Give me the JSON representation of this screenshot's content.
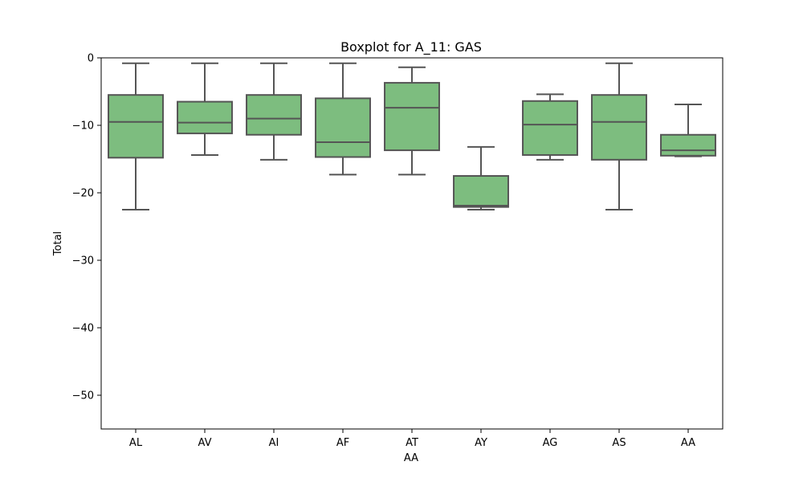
{
  "chart_data": {
    "type": "box",
    "title": "Boxplot for A_11: GAS",
    "xlabel": "AA",
    "ylabel": "Total",
    "ylim": [
      -55,
      0
    ],
    "yticks": [
      0,
      -10,
      -20,
      -30,
      -40,
      -50
    ],
    "ytick_labels": [
      "0",
      "−10",
      "−20",
      "−30",
      "−40",
      "−50"
    ],
    "grid": false,
    "box_color": "#7dbd7f",
    "line_color": "#555555",
    "categories": [
      "AL",
      "AV",
      "AI",
      "AF",
      "AT",
      "AY",
      "AG",
      "AS",
      "AA"
    ],
    "boxes": [
      {
        "category": "AL",
        "whisker_low": -22.5,
        "q1": -14.8,
        "median": -9.5,
        "q3": -5.5,
        "whisker_high": -0.8
      },
      {
        "category": "AV",
        "whisker_low": -14.4,
        "q1": -11.2,
        "median": -9.6,
        "q3": -6.5,
        "whisker_high": -0.8
      },
      {
        "category": "AI",
        "whisker_low": -15.1,
        "q1": -11.4,
        "median": -9.0,
        "q3": -5.5,
        "whisker_high": -0.8
      },
      {
        "category": "AF",
        "whisker_low": -17.3,
        "q1": -14.7,
        "median": -12.5,
        "q3": -6.0,
        "whisker_high": -0.8
      },
      {
        "category": "AT",
        "whisker_low": -17.3,
        "q1": -13.7,
        "median": -7.4,
        "q3": -3.7,
        "whisker_high": -1.4
      },
      {
        "category": "AY",
        "whisker_low": -22.5,
        "q1": -22.1,
        "median": -21.9,
        "q3": -17.5,
        "whisker_high": -13.2
      },
      {
        "category": "AG",
        "whisker_low": -15.1,
        "q1": -14.4,
        "median": -9.9,
        "q3": -6.4,
        "whisker_high": -5.4
      },
      {
        "category": "AS",
        "whisker_low": -22.5,
        "q1": -15.1,
        "median": -9.5,
        "q3": -5.5,
        "whisker_high": -0.8
      },
      {
        "category": "AA",
        "whisker_low": -14.6,
        "q1": -14.5,
        "median": -13.7,
        "q3": -11.4,
        "whisker_high": -6.9
      }
    ]
  }
}
